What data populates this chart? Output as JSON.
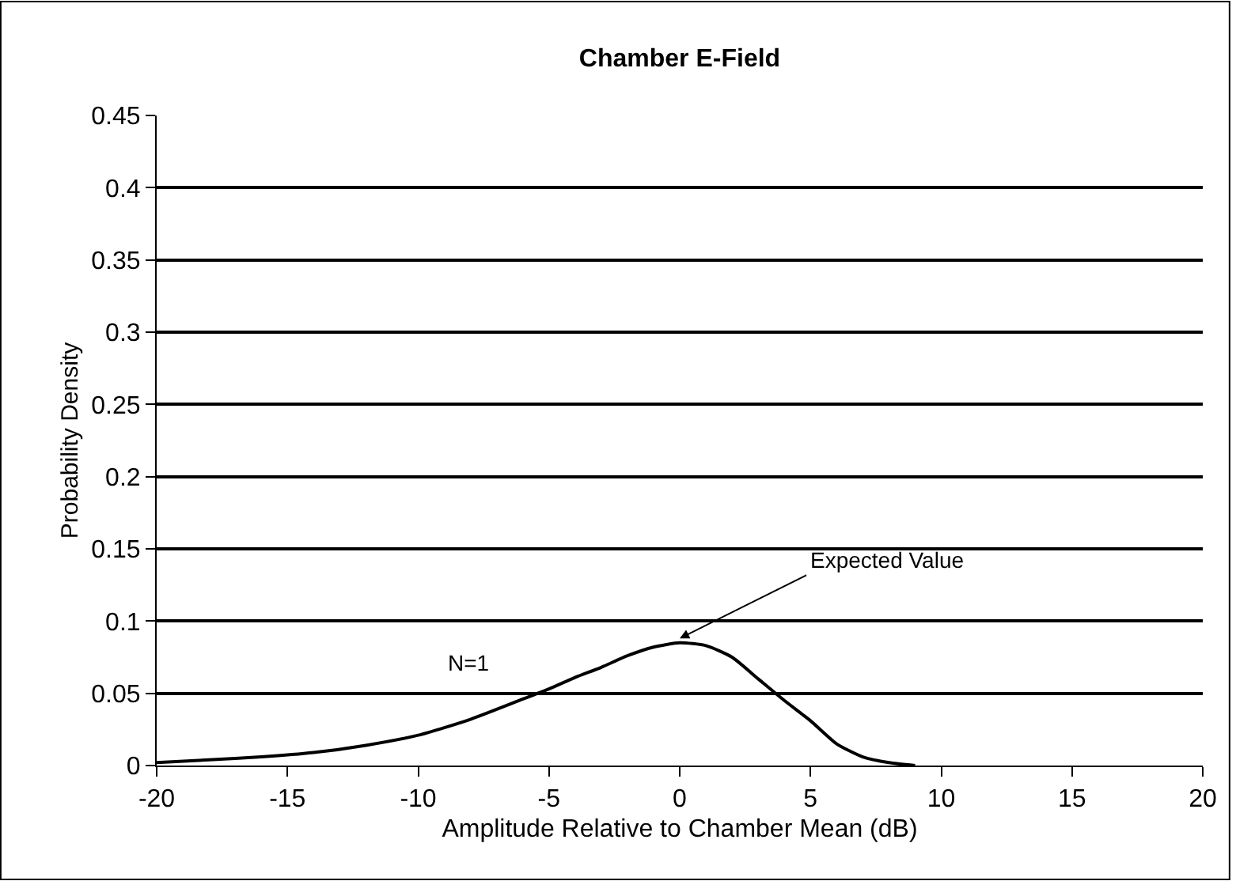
{
  "chart_data": {
    "type": "line",
    "title": "Chamber E-Field",
    "xlabel": "Amplitude Relative to Chamber Mean (dB)",
    "ylabel": "Probability Density",
    "x": [
      -20,
      -18,
      -16,
      -14,
      -12,
      -10,
      -8,
      -6,
      -5,
      -4,
      -3,
      -2,
      -1,
      0,
      1,
      2,
      3,
      4,
      5,
      6,
      7,
      8,
      9
    ],
    "series": [
      {
        "name": "N=1",
        "color": "#000000",
        "values": [
          0.002,
          0.004,
          0.006,
          0.009,
          0.014,
          0.021,
          0.032,
          0.046,
          0.053,
          0.061,
          0.068,
          0.076,
          0.082,
          0.085,
          0.083,
          0.075,
          0.06,
          0.045,
          0.031,
          0.015,
          0.006,
          0.002,
          0.0
        ]
      }
    ],
    "annotations": [
      {
        "text": "Expected Value",
        "x": 0,
        "y": 0.088
      }
    ],
    "xlim": [
      -20,
      20
    ],
    "xticks": [
      -20,
      -15,
      -10,
      -5,
      0,
      5,
      10,
      15,
      20
    ],
    "ylim": [
      0,
      0.45
    ],
    "yticks": [
      0,
      0.05,
      0.1,
      0.15,
      0.2,
      0.25,
      0.3,
      0.35,
      0.4,
      0.45
    ],
    "grid": "y",
    "legend": false,
    "marker": "none",
    "line_style": "solid"
  }
}
